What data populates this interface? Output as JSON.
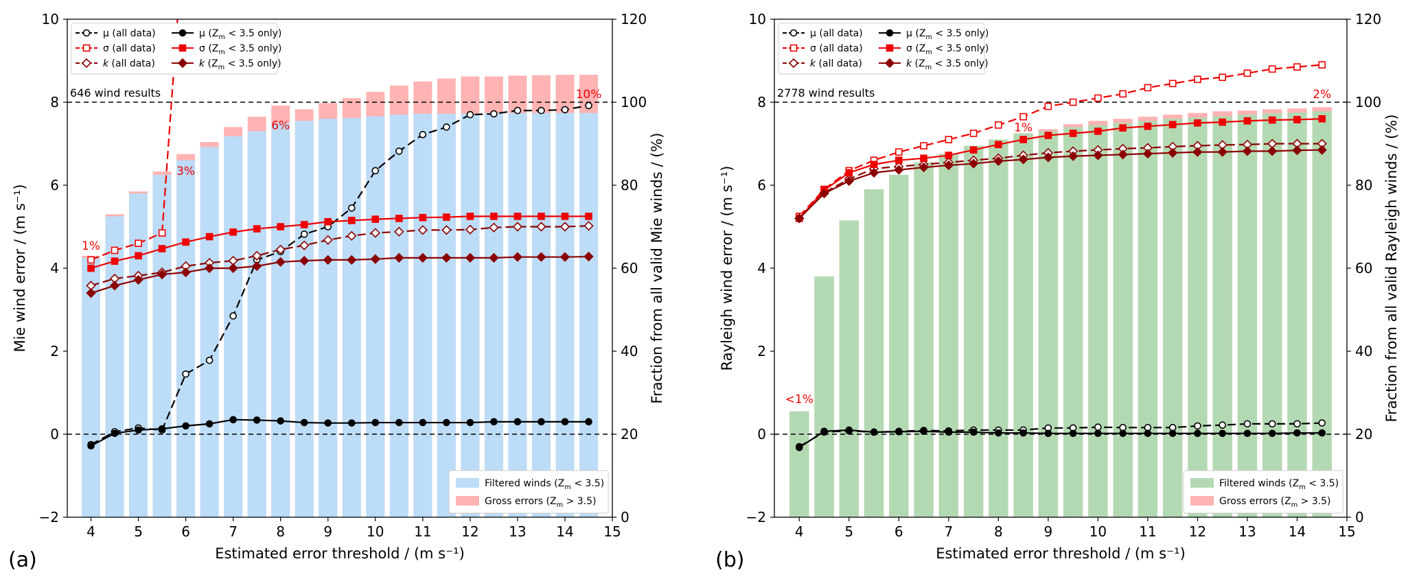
{
  "chart_data": [
    {
      "type": "bar+line",
      "panel_label": "(a)",
      "xlabel": "Estimated error threshold / (m s⁻¹)",
      "ylabel": "Mie wind error / (m s⁻¹)",
      "y2label": "Fraction from all valid Mie winds / (%)",
      "xlim": [
        3.5,
        15
      ],
      "ylim": [
        -2,
        10
      ],
      "y2lim": [
        0,
        120
      ],
      "x_ticks": [
        "4",
        "5",
        "6",
        "7",
        "8",
        "9",
        "10",
        "11",
        "12",
        "13",
        "14",
        "15"
      ],
      "y_ticks": [
        "−2",
        "0",
        "2",
        "4",
        "6",
        "8",
        "10"
      ],
      "y2_ticks": [
        "0",
        "20",
        "40",
        "60",
        "80",
        "100",
        "120"
      ],
      "count_label": "646 wind results",
      "x": [
        4,
        4.5,
        5,
        5.5,
        6,
        6.5,
        7,
        7.5,
        8,
        8.5,
        9,
        9.5,
        10,
        10.5,
        11,
        11.5,
        12,
        12.5,
        13,
        13.5,
        14,
        14.5
      ],
      "bars": {
        "filtered": [
          62.5,
          72.5,
          78,
          82.5,
          86,
          89.2,
          91.8,
          93,
          95,
          95.5,
          96,
          96.2,
          96.6,
          97,
          97.2,
          97.2,
          97.2,
          97.4,
          97.4,
          97.4,
          97.4,
          97.4
        ],
        "total": [
          63,
          73,
          78.5,
          83.3,
          87.5,
          90.4,
          94,
          96.5,
          99.2,
          98.3,
          99.8,
          101,
          102.5,
          104,
          105,
          105.7,
          106.2,
          106.2,
          106.4,
          106.5,
          106.6,
          106.6
        ]
      },
      "series": [
        {
          "name": "μ (all data)",
          "values": [
            -0.25,
            0.06,
            0.15,
            0.1,
            1.45,
            1.78,
            2.85,
            4.2,
            4.4,
            4.82,
            5.0,
            5.45,
            6.35,
            6.82,
            7.22,
            7.4,
            7.7,
            7.72,
            7.8,
            7.8,
            7.82,
            7.92
          ]
        },
        {
          "name": "σ (all data)",
          "values": [
            4.2,
            4.43,
            4.6,
            4.85,
            null,
            null,
            null,
            null,
            null,
            null,
            null,
            null,
            null,
            null,
            null,
            null,
            null,
            null,
            null,
            null,
            null,
            null
          ]
        },
        {
          "name": "k (all data)",
          "values": [
            3.58,
            3.75,
            3.82,
            3.9,
            4.05,
            4.13,
            4.18,
            4.3,
            4.45,
            4.55,
            4.68,
            4.78,
            4.85,
            4.88,
            4.92,
            4.92,
            4.93,
            4.98,
            5.0,
            5.0,
            5.0,
            5.02
          ]
        },
        {
          "name": "μ (Z_m < 3.5 only)",
          "values": [
            -0.28,
            0.02,
            0.1,
            0.13,
            0.2,
            0.25,
            0.35,
            0.34,
            0.32,
            0.28,
            0.27,
            0.27,
            0.28,
            0.28,
            0.28,
            0.28,
            0.28,
            0.3,
            0.3,
            0.3,
            0.3,
            0.3
          ]
        },
        {
          "name": "σ (Z_m < 3.5 only)",
          "values": [
            4.0,
            4.17,
            4.3,
            4.47,
            4.63,
            4.76,
            4.87,
            4.95,
            5.0,
            5.05,
            5.12,
            5.15,
            5.18,
            5.2,
            5.22,
            5.23,
            5.25,
            5.25,
            5.25,
            5.25,
            5.25,
            5.25
          ]
        },
        {
          "name": "k (Z_m < 3.5 only)",
          "values": [
            3.4,
            3.58,
            3.72,
            3.85,
            3.9,
            4.0,
            4.0,
            4.05,
            4.15,
            4.18,
            4.2,
            4.2,
            4.22,
            4.25,
            4.25,
            4.25,
            4.25,
            4.25,
            4.27,
            4.27,
            4.27,
            4.28
          ]
        }
      ],
      "sigma_all_offscale_line": {
        "from": [
          5.5,
          4.85
        ],
        "to": [
          5.85,
          10.4
        ]
      },
      "annotations": [
        {
          "text": "1%",
          "x": 4,
          "y": 4.45
        },
        {
          "text": "3%",
          "x": 6,
          "y": 6.25
        },
        {
          "text": "6%",
          "x": 8,
          "y": 7.35
        },
        {
          "text": "10%",
          "x": 14.5,
          "y": 8.1
        }
      ],
      "bar_legend": [
        {
          "name": "Filtered winds (Z_m < 3.5)",
          "color": "#bcdcf7"
        },
        {
          "name": "Gross errors (Z_m > 3.5)",
          "color": "#ffb3b3"
        }
      ]
    },
    {
      "type": "bar+line",
      "panel_label": "(b)",
      "xlabel": "Estimated error threshold / (m s⁻¹)",
      "ylabel": "Rayleigh wind error / (m s⁻¹)",
      "y2label": "Fraction from all valid Rayleigh winds / (%)",
      "xlim": [
        3.5,
        15
      ],
      "ylim": [
        -2,
        10
      ],
      "y2lim": [
        0,
        120
      ],
      "x_ticks": [
        "4",
        "5",
        "6",
        "7",
        "8",
        "9",
        "10",
        "11",
        "12",
        "13",
        "14",
        "15"
      ],
      "y_ticks": [
        "−2",
        "0",
        "2",
        "4",
        "6",
        "8",
        "10"
      ],
      "y2_ticks": [
        "0",
        "20",
        "40",
        "60",
        "80",
        "100",
        "120"
      ],
      "count_label": "2778 wind results",
      "x": [
        4,
        4.5,
        5,
        5.5,
        6,
        6.5,
        7,
        7.5,
        8,
        8.5,
        9,
        9.5,
        10,
        10.5,
        11,
        11.5,
        12,
        12.5,
        13,
        13.5,
        14,
        14.5
      ],
      "bars": {
        "filtered": [
          25.5,
          58,
          71.5,
          79,
          82.5,
          85.5,
          87.5,
          89.5,
          91,
          92.5,
          93,
          94,
          94.5,
          95,
          95.5,
          96,
          96.3,
          96.6,
          97,
          97.3,
          97.5,
          97.8
        ],
        "total": [
          25.5,
          58,
          71.5,
          79,
          82.5,
          85.5,
          87.5,
          89.5,
          91,
          92.5,
          93.5,
          94.7,
          95.5,
          96,
          96.5,
          97,
          97.4,
          97.8,
          98,
          98.3,
          98.5,
          98.8
        ]
      },
      "series": [
        {
          "name": "μ (all data)",
          "values": [
            -0.3,
            0.05,
            0.08,
            0.05,
            0.07,
            0.09,
            0.08,
            0.1,
            0.1,
            0.1,
            0.15,
            0.15,
            0.17,
            0.16,
            0.16,
            0.16,
            0.2,
            0.22,
            0.25,
            0.25,
            0.25,
            0.27
          ]
        },
        {
          "name": "σ (all data)",
          "values": [
            5.25,
            5.9,
            6.35,
            6.6,
            6.8,
            6.95,
            7.1,
            7.25,
            7.45,
            7.65,
            7.9,
            8.0,
            8.1,
            8.2,
            8.35,
            8.45,
            8.55,
            8.6,
            8.7,
            8.8,
            8.85,
            8.9
          ]
        },
        {
          "name": "k (all data)",
          "values": [
            5.2,
            5.82,
            6.15,
            6.4,
            6.45,
            6.5,
            6.55,
            6.6,
            6.65,
            6.72,
            6.78,
            6.82,
            6.85,
            6.88,
            6.9,
            6.93,
            6.95,
            6.97,
            6.98,
            7.0,
            7.0,
            7.0
          ]
        },
        {
          "name": "μ (Z_m < 3.5 only)",
          "values": [
            -0.32,
            0.07,
            0.1,
            0.05,
            0.06,
            0.07,
            0.05,
            0.05,
            0.03,
            0.03,
            0.02,
            0.02,
            0.02,
            0.02,
            0.02,
            0.02,
            0.02,
            0.02,
            0.02,
            0.02,
            0.03,
            0.03
          ]
        },
        {
          "name": "σ (Z_m < 3.5 only)",
          "values": [
            5.2,
            5.88,
            6.3,
            6.5,
            6.6,
            6.65,
            6.72,
            6.85,
            6.98,
            7.1,
            7.2,
            7.25,
            7.3,
            7.38,
            7.42,
            7.46,
            7.5,
            7.52,
            7.55,
            7.57,
            7.58,
            7.6
          ]
        },
        {
          "name": "k (Z_m < 3.5 only)",
          "values": [
            5.2,
            5.8,
            6.1,
            6.3,
            6.37,
            6.43,
            6.48,
            6.52,
            6.58,
            6.62,
            6.67,
            6.7,
            6.72,
            6.74,
            6.76,
            6.78,
            6.8,
            6.8,
            6.82,
            6.82,
            6.84,
            6.85
          ]
        }
      ],
      "annotations": [
        {
          "text": "<1%",
          "x": 4,
          "y": 0.75
        },
        {
          "text": "1%",
          "x": 8.5,
          "y": 7.3
        },
        {
          "text": "2%",
          "x": 14.5,
          "y": 8.1
        }
      ],
      "bar_legend": [
        {
          "name": "Filtered winds (Z_m < 3.5)",
          "color": "#b3d9b3"
        },
        {
          "name": "Gross errors (Z_m > 3.5)",
          "color": "#ffb3b3"
        }
      ]
    }
  ],
  "colors": {
    "mu": "#000000",
    "sigma": "#ee0000",
    "k": "#8b0000",
    "bar_mie": "#bcdcf7",
    "bar_rayleigh": "#b3d9b3",
    "bar_gross": "#ffb3b3"
  }
}
